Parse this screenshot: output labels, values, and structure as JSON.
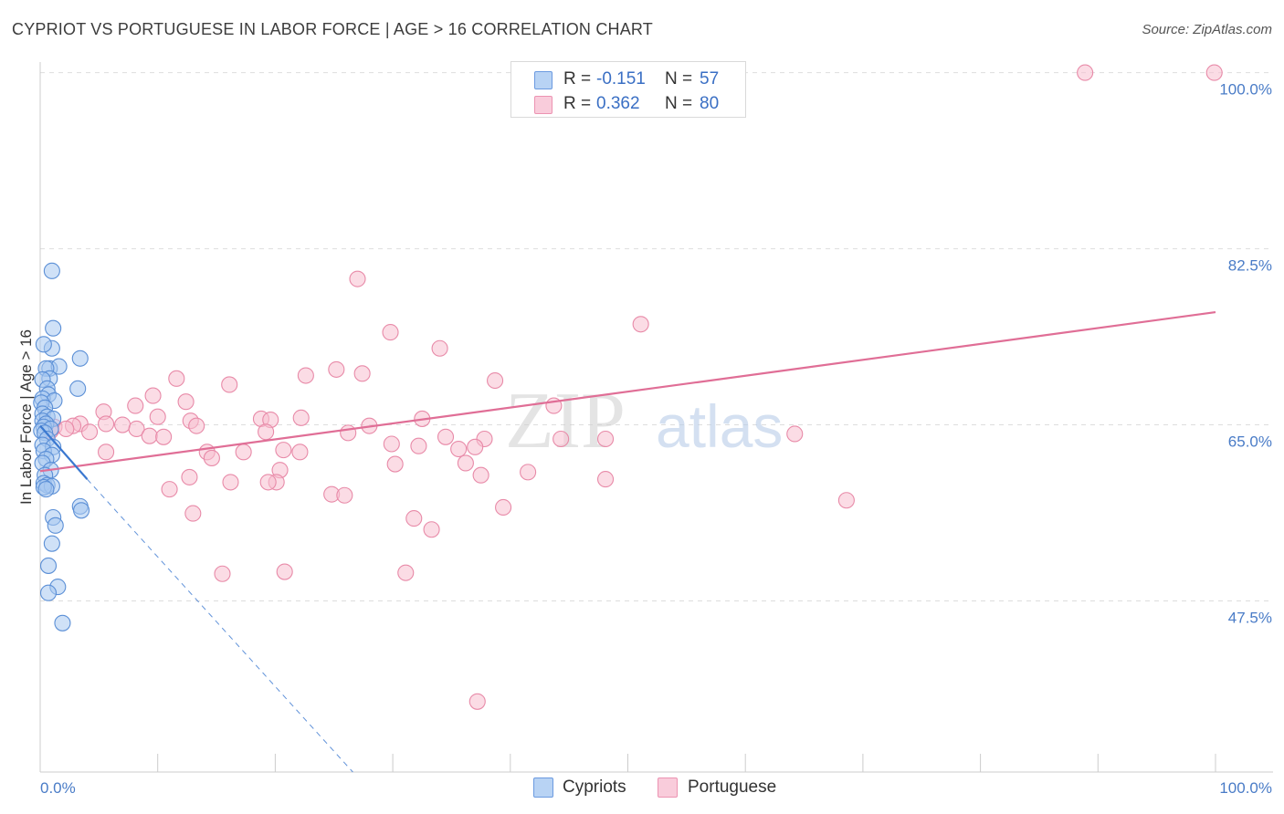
{
  "title": "CYPRIOT VS PORTUGUESE IN LABOR FORCE | AGE > 16 CORRELATION CHART",
  "source": "Source: ZipAtlas.com",
  "watermark": {
    "zip": "ZIP",
    "atlas": "atlas"
  },
  "legend": {
    "cypriots": {
      "r_label": "R =",
      "r_value": "-0.151",
      "n_label": "N =",
      "n_value": "57"
    },
    "portuguese": {
      "r_label": "R =",
      "r_value": "0.362",
      "n_label": "N =",
      "n_value": "80"
    }
  },
  "bottom_legend": {
    "cypriots": "Cypriots",
    "portuguese": "Portuguese"
  },
  "colors": {
    "blue_fill": "#a8c8f0",
    "blue_stroke": "#5b8fd6",
    "blue_line": "#3a78d0",
    "pink_fill": "#f7c0d0",
    "pink_stroke": "#e88aa8",
    "pink_line": "#e06e96",
    "tick_text": "#4a7cc7",
    "grid": "#dddddd"
  },
  "chart_data": {
    "type": "scatter",
    "title": "CYPRIOT VS PORTUGUESE IN LABOR FORCE | AGE > 16 CORRELATION CHART",
    "xlabel": "",
    "ylabel": "In Labor Force | Age > 16",
    "xlim": [
      0,
      100
    ],
    "ylim": [
      30.5,
      102
    ],
    "x_tick_labels": [
      "0.0%",
      "100.0%"
    ],
    "y_ticks": [
      47.5,
      65.0,
      82.5,
      100.0
    ],
    "y_tick_labels": [
      "47.5%",
      "65.0%",
      "82.5%",
      "100.0%"
    ],
    "grid": true,
    "legend_position": "top-center",
    "series": [
      {
        "name": "Cypriots",
        "r": -0.151,
        "n": 57,
        "points": [
          [
            1.0,
            80.3
          ],
          [
            1.1,
            74.6
          ],
          [
            1.0,
            72.6
          ],
          [
            0.3,
            73.0
          ],
          [
            3.4,
            71.6
          ],
          [
            0.8,
            70.6
          ],
          [
            1.6,
            70.8
          ],
          [
            0.5,
            70.6
          ],
          [
            0.8,
            69.6
          ],
          [
            0.2,
            69.5
          ],
          [
            3.2,
            68.6
          ],
          [
            0.6,
            68.6
          ],
          [
            0.7,
            68.0
          ],
          [
            0.2,
            67.6
          ],
          [
            1.2,
            67.4
          ],
          [
            0.1,
            67.2
          ],
          [
            0.4,
            66.7
          ],
          [
            0.2,
            66.1
          ],
          [
            0.6,
            65.8
          ],
          [
            1.1,
            65.6
          ],
          [
            0.2,
            65.4
          ],
          [
            0.5,
            65.1
          ],
          [
            0.3,
            64.8
          ],
          [
            0.9,
            64.6
          ],
          [
            0.1,
            64.4
          ],
          [
            0.4,
            64.2
          ],
          [
            0.6,
            63.6
          ],
          [
            0.2,
            63.0
          ],
          [
            1.1,
            62.8
          ],
          [
            0.3,
            62.4
          ],
          [
            1.0,
            62.0
          ],
          [
            0.5,
            61.6
          ],
          [
            0.2,
            61.2
          ],
          [
            0.9,
            60.5
          ],
          [
            0.4,
            60.0
          ],
          [
            0.3,
            59.2
          ],
          [
            0.6,
            59.0
          ],
          [
            1.0,
            58.9
          ],
          [
            0.3,
            58.8
          ],
          [
            0.5,
            58.6
          ],
          [
            3.4,
            56.9
          ],
          [
            3.5,
            56.5
          ],
          [
            1.1,
            55.8
          ],
          [
            1.3,
            55.0
          ],
          [
            1.0,
            53.2
          ],
          [
            0.7,
            51.0
          ],
          [
            1.5,
            48.9
          ],
          [
            0.7,
            48.3
          ],
          [
            1.9,
            45.3
          ]
        ]
      },
      {
        "name": "Portuguese",
        "r": 0.362,
        "n": 80,
        "points": [
          [
            88.9,
            100.0
          ],
          [
            99.9,
            100.0
          ],
          [
            27.0,
            79.5
          ],
          [
            51.1,
            75.0
          ],
          [
            29.8,
            74.2
          ],
          [
            34.0,
            72.6
          ],
          [
            25.2,
            70.5
          ],
          [
            27.4,
            70.1
          ],
          [
            22.6,
            69.9
          ],
          [
            11.6,
            69.6
          ],
          [
            38.7,
            69.4
          ],
          [
            16.1,
            69.0
          ],
          [
            9.6,
            67.9
          ],
          [
            12.4,
            67.3
          ],
          [
            8.1,
            66.9
          ],
          [
            43.7,
            66.9
          ],
          [
            5.4,
            66.3
          ],
          [
            10.0,
            65.8
          ],
          [
            22.2,
            65.7
          ],
          [
            32.5,
            65.6
          ],
          [
            18.8,
            65.6
          ],
          [
            19.6,
            65.5
          ],
          [
            12.8,
            65.4
          ],
          [
            3.4,
            65.1
          ],
          [
            5.6,
            65.1
          ],
          [
            7.0,
            65.0
          ],
          [
            13.3,
            64.9
          ],
          [
            2.8,
            64.9
          ],
          [
            1.2,
            64.8
          ],
          [
            2.2,
            64.6
          ],
          [
            19.2,
            64.3
          ],
          [
            4.2,
            64.3
          ],
          [
            8.2,
            64.6
          ],
          [
            0.9,
            64.4
          ],
          [
            9.3,
            63.9
          ],
          [
            10.5,
            63.8
          ],
          [
            26.2,
            64.2
          ],
          [
            28.0,
            64.9
          ],
          [
            44.3,
            63.6
          ],
          [
            48.1,
            63.6
          ],
          [
            37.8,
            63.6
          ],
          [
            34.5,
            63.8
          ],
          [
            32.2,
            62.9
          ],
          [
            29.9,
            63.1
          ],
          [
            35.6,
            62.6
          ],
          [
            20.7,
            62.5
          ],
          [
            22.1,
            62.3
          ],
          [
            5.6,
            62.3
          ],
          [
            14.2,
            62.3
          ],
          [
            37.0,
            62.8
          ],
          [
            14.6,
            61.7
          ],
          [
            36.2,
            61.2
          ],
          [
            30.2,
            61.1
          ],
          [
            17.3,
            62.3
          ],
          [
            20.4,
            60.5
          ],
          [
            41.5,
            60.3
          ],
          [
            37.5,
            60.0
          ],
          [
            12.7,
            59.8
          ],
          [
            48.1,
            59.6
          ],
          [
            16.2,
            59.3
          ],
          [
            20.1,
            59.3
          ],
          [
            19.4,
            59.3
          ],
          [
            11.0,
            58.6
          ],
          [
            24.8,
            58.1
          ],
          [
            25.9,
            58.0
          ],
          [
            68.6,
            57.5
          ],
          [
            39.4,
            56.8
          ],
          [
            13.0,
            56.2
          ],
          [
            31.8,
            55.7
          ],
          [
            33.3,
            54.6
          ],
          [
            15.5,
            50.2
          ],
          [
            20.8,
            50.4
          ],
          [
            31.1,
            50.3
          ],
          [
            37.2,
            37.5
          ],
          [
            64.2,
            64.1
          ]
        ]
      }
    ],
    "trend_lines": [
      {
        "series": "Cypriots",
        "solid": {
          "x": [
            0.0,
            4.0
          ],
          "y": [
            64.9,
            59.6
          ]
        },
        "dashed": {
          "x": [
            4.0,
            26.6
          ],
          "y": [
            59.6,
            30.5
          ]
        }
      },
      {
        "series": "Portuguese",
        "solid": {
          "x": [
            0.0,
            100.0
          ],
          "y": [
            60.4,
            76.2
          ]
        }
      }
    ]
  }
}
